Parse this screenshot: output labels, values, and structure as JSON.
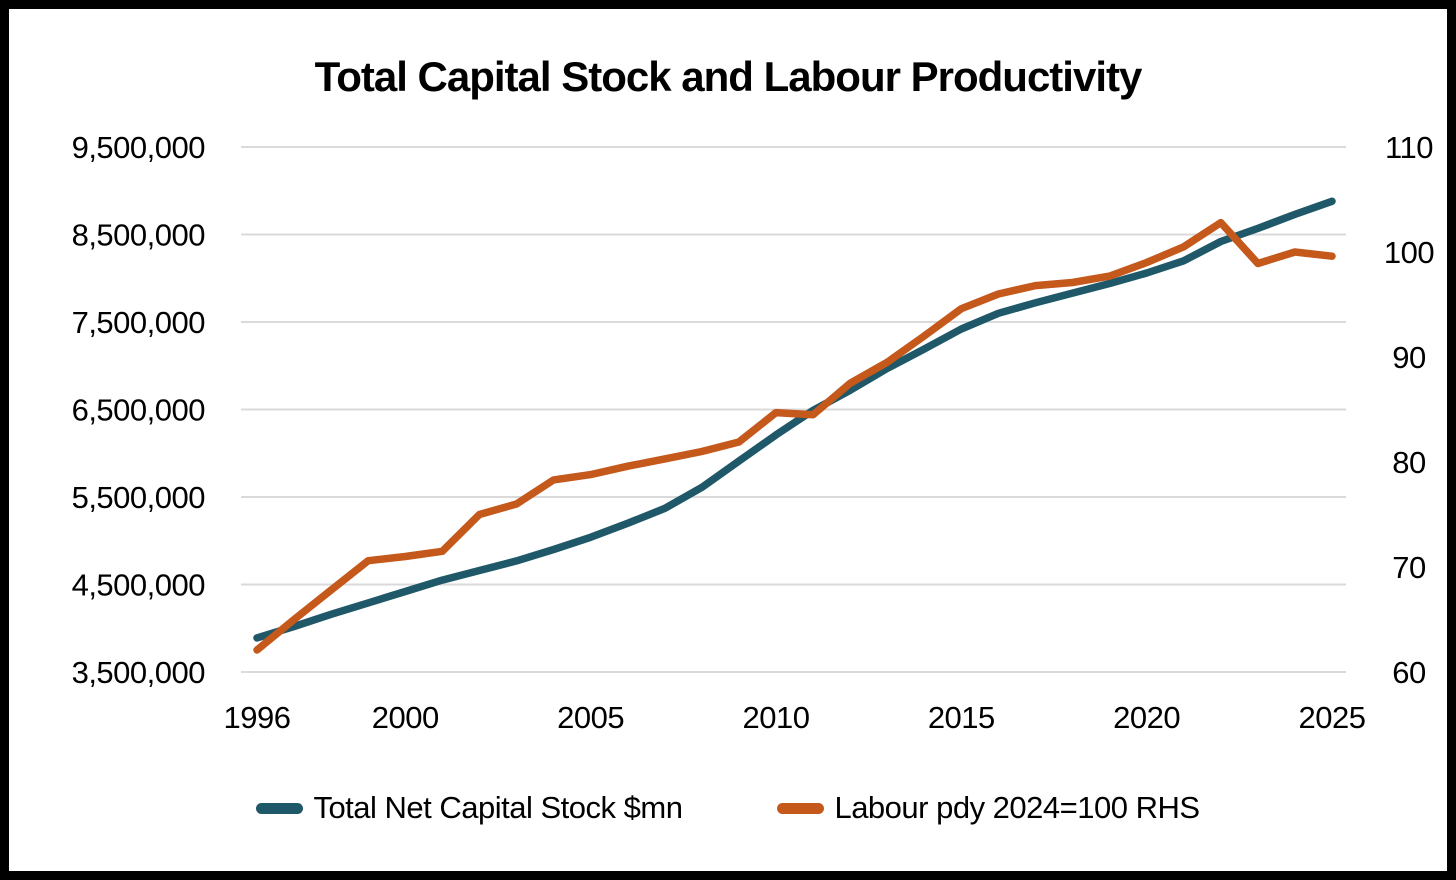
{
  "title": "Total Capital Stock and Labour Productivity",
  "chart_data": {
    "type": "line",
    "grid": true,
    "legend_position": "bottom",
    "x": [
      1996,
      1997,
      1998,
      1999,
      2000,
      2001,
      2002,
      2003,
      2004,
      2005,
      2006,
      2007,
      2008,
      2009,
      2010,
      2011,
      2012,
      2013,
      2014,
      2015,
      2016,
      2017,
      2018,
      2019,
      2020,
      2021,
      2022,
      2023,
      2024,
      2025
    ],
    "x_ticks": [
      1996,
      2000,
      2005,
      2010,
      2015,
      2020,
      2025
    ],
    "left_axis": {
      "min": 3500000,
      "max": 9500000,
      "tick_values": [
        9500000,
        8500000,
        7500000,
        6500000,
        5500000,
        4500000,
        3500000
      ],
      "tick_labels": [
        "9,500,000",
        "8,500,000",
        "7,500,000",
        "6,500,000",
        "5,500,000",
        "4,500,000",
        "3,500,000"
      ]
    },
    "right_axis": {
      "min": 60,
      "max": 110,
      "tick_values": [
        110,
        100,
        90,
        80,
        70,
        60
      ],
      "tick_labels": [
        "110",
        "100",
        "90",
        "80",
        "70",
        "60"
      ]
    },
    "series": [
      {
        "name": "Total Net Capital Stock $mn",
        "axis": "left",
        "color": "#1F5868",
        "values": [
          3890000,
          4020000,
          4160000,
          4290000,
          4420000,
          4550000,
          4660000,
          4770000,
          4900000,
          5040000,
          5200000,
          5370000,
          5610000,
          5910000,
          6210000,
          6490000,
          6720000,
          6970000,
          7190000,
          7420000,
          7600000,
          7720000,
          7830000,
          7940000,
          8060000,
          8200000,
          8420000,
          8570000,
          8730000,
          8880000
        ]
      },
      {
        "name": "Labour pdy 2024=100 RHS",
        "axis": "right",
        "color": "#C5581B",
        "values": [
          62.1,
          65.0,
          67.8,
          70.6,
          71.0,
          71.5,
          75.0,
          76.0,
          78.3,
          78.8,
          79.6,
          80.3,
          81.0,
          81.9,
          84.7,
          84.5,
          87.5,
          89.5,
          92.0,
          94.6,
          96.0,
          96.8,
          97.1,
          97.7,
          99.0,
          100.5,
          102.8,
          98.9,
          100.0,
          99.6
        ]
      }
    ],
    "gridline_color": "#DADADA"
  }
}
